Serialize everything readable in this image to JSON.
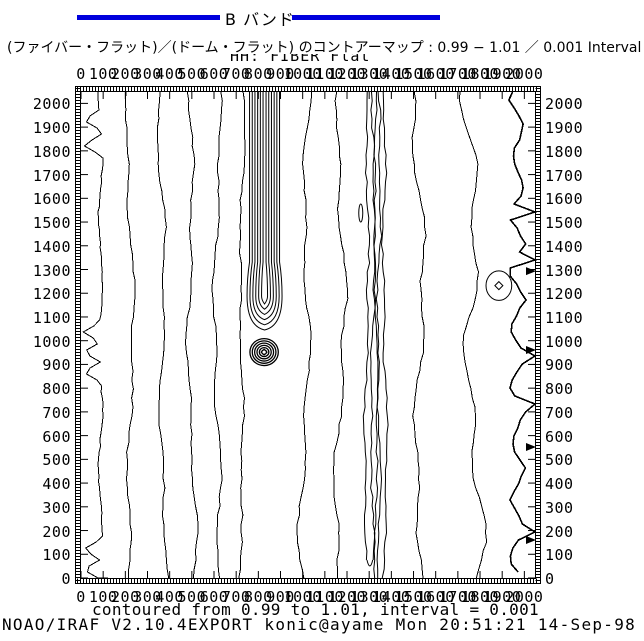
{
  "window": {
    "background": "#ffffff",
    "ink": "#000000"
  },
  "header": {
    "title": "B バンド",
    "rule_color": "#0000dd"
  },
  "subtitle": "(ファイバー・フラット)／(ドーム・フラット) のコントアーマップ : 0.99 − 1.01 ／ 0.001 Interval",
  "footer": {
    "contour_info": "contoured from 0.99 to 1.01, interval = 0.001",
    "credit": "NOAO/IRAF V2.10.4EXPORT konic@ayame Mon 20:51:21 14-Sep-98"
  },
  "chart_data": {
    "type": "contour",
    "title": "HH: FIBER Flat",
    "xlabel": "",
    "ylabel": "",
    "x_range": [
      0,
      2048
    ],
    "y_range": [
      0,
      2048
    ],
    "x_ticks": [
      0,
      100,
      200,
      300,
      400,
      500,
      600,
      700,
      800,
      900,
      1000,
      1100,
      1200,
      1300,
      1400,
      1500,
      1600,
      1700,
      1800,
      1900,
      2000
    ],
    "y_ticks": [
      0,
      100,
      200,
      300,
      400,
      500,
      600,
      700,
      800,
      900,
      1000,
      1100,
      1200,
      1300,
      1400,
      1500,
      1600,
      1700,
      1800,
      1900,
      2000
    ],
    "contoured_from": 0.99,
    "contoured_to": 1.01,
    "interval": 0.001,
    "grid": false,
    "legend": "none",
    "contour_lines": [
      {
        "x": 220,
        "amp": 22,
        "seed": 2
      },
      {
        "x": 366,
        "amp": 26,
        "seed": 3
      },
      {
        "x": 498,
        "amp": 24,
        "seed": 4
      },
      {
        "x": 617,
        "amp": 22,
        "seed": 5
      },
      {
        "x": 727,
        "amp": 16,
        "seed": 6
      },
      {
        "x": 1013,
        "amp": 30,
        "seed": 7
      },
      {
        "x": 1167,
        "amp": 32,
        "seed": 8
      },
      {
        "x": 1520,
        "amp": 38,
        "seed": 9
      },
      {
        "x": 1762,
        "amp": 62,
        "seed": 10
      }
    ],
    "left_edge_line": {
      "x": 88,
      "spikes_y": [
        1930,
        1824,
        1036,
        952,
        868,
        120,
        36
      ]
    },
    "dense_bundle": {
      "x_center": 828,
      "x_spread": 135,
      "n_loops": 6,
      "top_y": 2048,
      "teardrop_y": [
        1010,
        1230
      ]
    },
    "tight_group_x": [
      1290,
      1316,
      1342,
      1368
    ],
    "closed_features": [
      {
        "name": "concentric-minimum-blob",
        "x": 826,
        "y": 952,
        "r": 64
      },
      {
        "name": "small-oval-with-diamond",
        "x": 1885,
        "y": 1232,
        "r": 58
      },
      {
        "name": "tiny-sliver",
        "x": 1262,
        "y": 1538,
        "r": 38
      }
    ],
    "right_edge_ripple": {
      "x": 1955,
      "arrow_y": [
        1293,
        961,
        552,
        160
      ]
    }
  }
}
